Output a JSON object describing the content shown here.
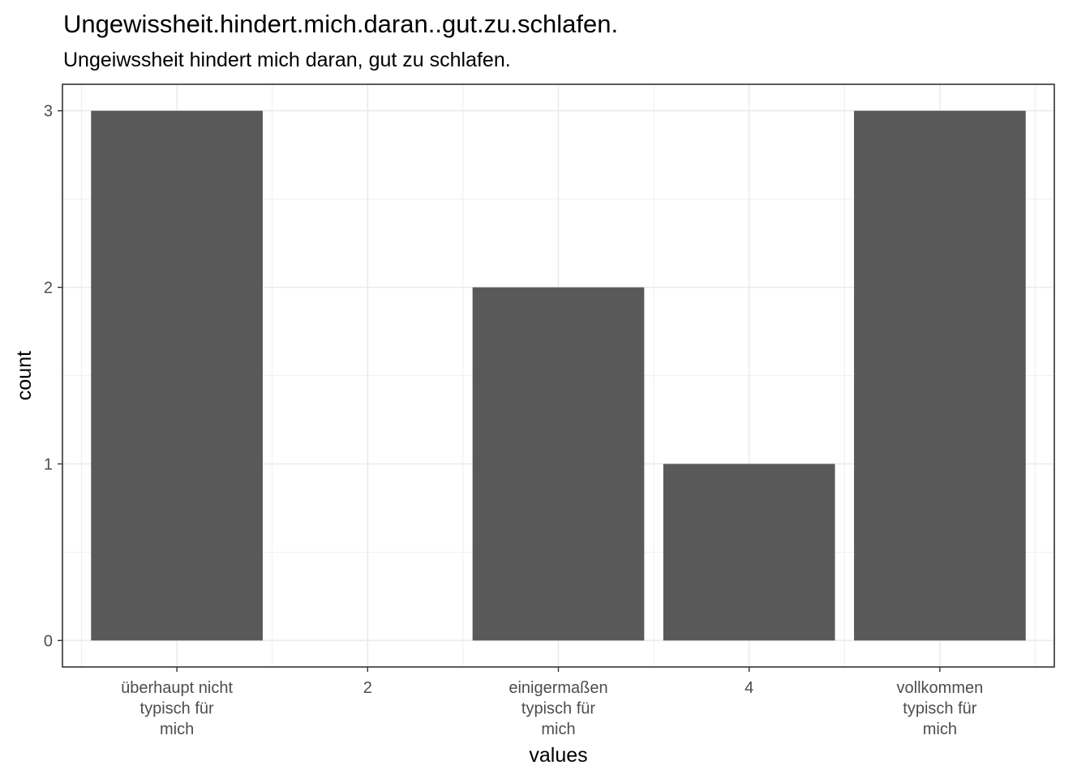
{
  "chart_data": {
    "type": "bar",
    "title": "Ungewissheit.hindert.mich.daran..gut.zu.schlafen.",
    "subtitle": "Ungeiwssheit hindert mich daran, gut zu schlafen.",
    "xlabel": "values",
    "ylabel": "count",
    "categories": [
      "überhaupt nicht\ntypisch für\nmich",
      "2",
      "einigermaßen\ntypisch für\nmich",
      "4",
      "vollkommen\ntypisch für\nmich"
    ],
    "values": [
      3,
      0,
      2,
      1,
      3
    ],
    "ylim": [
      0,
      3
    ],
    "yticks": [
      0,
      1,
      2,
      3
    ],
    "grid": true,
    "legend": "none",
    "bar_color": "#595959"
  }
}
